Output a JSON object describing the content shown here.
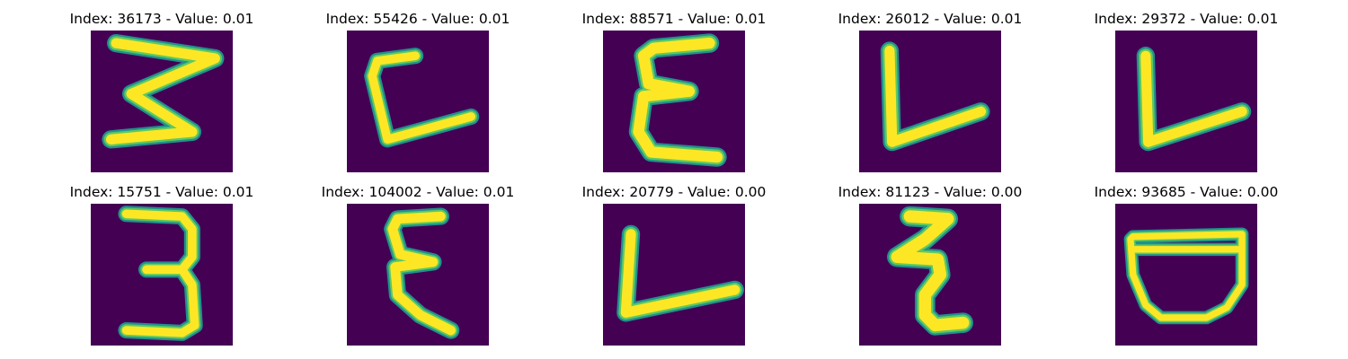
{
  "figure": {
    "colormap": "viridis",
    "colors": {
      "background": "#440154",
      "stroke_outer": "#21918c",
      "stroke_mid": "#5ec962",
      "stroke_core": "#fde725"
    },
    "panels": [
      {
        "title": "Index: 36173 - Value: 0.01",
        "glyph": "3-zigzag-icon"
      },
      {
        "title": "Index: 55426 - Value: 0.01",
        "glyph": "c-angular-icon"
      },
      {
        "title": "Index: 88571 - Value: 0.01",
        "glyph": "epsilon-icon"
      },
      {
        "title": "Index: 26012 - Value: 0.01",
        "glyph": "l-slanted-icon"
      },
      {
        "title": "Index: 29372 - Value: 0.01",
        "glyph": "l-slanted-icon"
      },
      {
        "title": "Index: 15751 - Value: 0.01",
        "glyph": "3-digit-icon"
      },
      {
        "title": "Index: 104002 - Value: 0.01",
        "glyph": "epsilon-icon"
      },
      {
        "title": "Index: 20779 - Value: 0.00",
        "glyph": "l-slanted-icon"
      },
      {
        "title": "Index: 81123 - Value: 0.00",
        "glyph": "z-curl-icon"
      },
      {
        "title": "Index: 93685 - Value: 0.00",
        "glyph": "bowl-icon"
      }
    ]
  }
}
